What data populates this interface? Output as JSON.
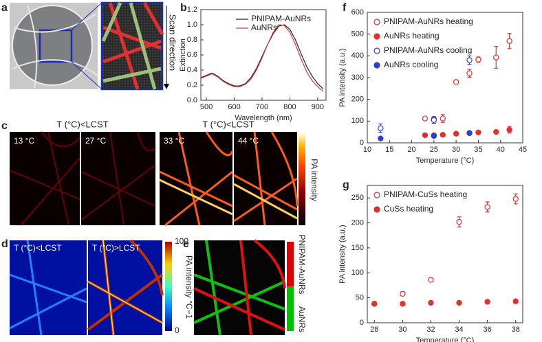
{
  "panel_labels": [
    "a",
    "b",
    "c",
    "d",
    "e",
    "f",
    "g"
  ],
  "panel_a": {
    "label": "Scan direction"
  },
  "panel_c": {
    "headers": [
      "T (°C)<LCST",
      "T (°C)<LCST"
    ],
    "temps": [
      "13 °C",
      "27 °C",
      "33 °C",
      "44 °C"
    ],
    "colorbar_label": "PA intensity"
  },
  "panel_d": {
    "headers": [
      "T (°C)<LCST",
      "T (°C)>LCST"
    ],
    "colorbar_ticks": [
      0,
      100
    ],
    "colorbar_label": "PA intensity °C−1"
  },
  "panel_e": {
    "colorbar_labels": [
      "PNIPAM-AuNRs",
      "AuNRs"
    ]
  },
  "chart_data": [
    {
      "type": "line",
      "xlabel": "Wavelength (nm)",
      "ylabel": "Extinction",
      "legend": "upper center",
      "x": [
        480,
        500,
        520,
        540,
        560,
        580,
        600,
        620,
        640,
        660,
        680,
        700,
        720,
        740,
        760,
        780,
        800,
        820,
        840,
        860,
        880,
        900,
        920
      ],
      "xlim": [
        480,
        930
      ],
      "xticks": [
        500,
        600,
        700,
        800,
        900
      ],
      "ylim": [
        0,
        1.2
      ],
      "yticks": [
        {
          "value": 0,
          "label": "0.0"
        },
        0.2,
        0.4,
        0.6,
        0.8,
        {
          "value": 1,
          "label": "1.0"
        },
        1.2
      ],
      "series": [
        {
          "name": "PNIPAM-AuNRs",
          "color": "#222222",
          "values": [
            0.3,
            0.33,
            0.36,
            0.32,
            0.26,
            0.22,
            0.19,
            0.19,
            0.22,
            0.3,
            0.42,
            0.58,
            0.74,
            0.88,
            0.98,
            1.0,
            0.94,
            0.8,
            0.62,
            0.45,
            0.32,
            0.22,
            0.15
          ]
        },
        {
          "name": "AuNRs",
          "color": "#d9383a",
          "values": [
            0.29,
            0.32,
            0.35,
            0.31,
            0.25,
            0.21,
            0.18,
            0.18,
            0.21,
            0.28,
            0.4,
            0.56,
            0.74,
            0.9,
            1.0,
            0.99,
            0.9,
            0.74,
            0.55,
            0.38,
            0.26,
            0.18,
            0.12
          ]
        }
      ]
    },
    {
      "type": "scatter",
      "xlabel": "Temperature (°C)",
      "ylabel": "PA intensity (a.u.)",
      "legend": "upper left",
      "xlim": [
        10,
        45
      ],
      "xticks": [
        10,
        15,
        20,
        25,
        30,
        35,
        40,
        45
      ],
      "ylim": [
        0,
        600
      ],
      "yticks": [
        0,
        100,
        200,
        300,
        400,
        500,
        600
      ],
      "series": [
        {
          "name": "PNIPAM-AuNRs heating",
          "color": "#e0312f",
          "marker": "open",
          "x": [
            23,
            25,
            27,
            30,
            33,
            35,
            39,
            42
          ],
          "values": [
            112,
            110,
            112,
            280,
            320,
            383,
            393,
            468
          ],
          "errors": [
            8,
            10,
            18,
            8,
            18,
            12,
            50,
            35
          ]
        },
        {
          "name": "AuNRs heating",
          "color": "#e0312f",
          "marker": "filled",
          "x": [
            23,
            25,
            27,
            30,
            33,
            35,
            39,
            42
          ],
          "values": [
            35,
            35,
            37,
            42,
            45,
            48,
            50,
            60
          ],
          "errors": [
            3,
            3,
            3,
            3,
            3,
            3,
            3,
            15
          ]
        },
        {
          "name": "PNIPAM-AuNRs cooling",
          "color": "#2c3fd1",
          "marker": "open",
          "x": [
            13,
            25,
            33
          ],
          "values": [
            67,
            105,
            380
          ],
          "errors": [
            20,
            15,
            20
          ]
        },
        {
          "name": "AuNRs cooling",
          "color": "#2c3fd1",
          "marker": "filled",
          "x": [
            13,
            25,
            33
          ],
          "values": [
            20,
            32,
            45
          ],
          "errors": [
            3,
            3,
            5
          ]
        }
      ]
    },
    {
      "type": "scatter",
      "xlabel": "Temperature (°C)",
      "ylabel": "PA intensity (a.u.)",
      "legend": "upper left",
      "xlim": [
        27.5,
        38.5
      ],
      "xticks": [
        28,
        30,
        32,
        34,
        36,
        38
      ],
      "ylim": [
        0,
        275
      ],
      "yticks": [
        0,
        50,
        100,
        150,
        200,
        250
      ],
      "series": [
        {
          "name": "PNIPAM-CuSs heating",
          "color": "#e0312f",
          "marker": "open",
          "x": [
            28,
            30,
            32,
            34,
            36,
            38
          ],
          "values": [
            38,
            58,
            86,
            202,
            232,
            248
          ],
          "errors": [
            4,
            4,
            4,
            10,
            10,
            10
          ]
        },
        {
          "name": "CuSs heating",
          "color": "#e0312f",
          "marker": "filled",
          "x": [
            28,
            30,
            32,
            34,
            36,
            38
          ],
          "values": [
            38,
            38,
            40,
            40,
            42,
            43
          ],
          "errors": [
            3,
            3,
            3,
            3,
            3,
            3
          ]
        }
      ]
    }
  ]
}
